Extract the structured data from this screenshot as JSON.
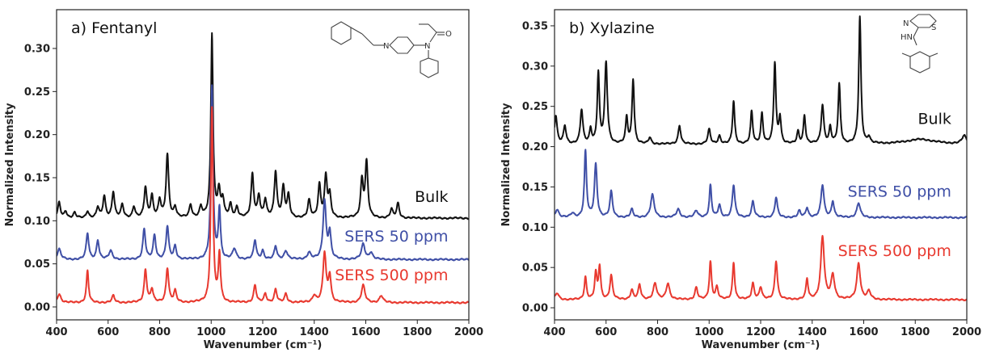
{
  "chart_data": [
    {
      "type": "line",
      "title": "a) Fentanyl",
      "xlabel": "Wavenumber (cm⁻¹)",
      "ylabel": "Normalized Intensity",
      "xlim": [
        400,
        2000
      ],
      "ylim": [
        -0.015,
        0.345
      ],
      "xticks": [
        400,
        600,
        800,
        1000,
        1200,
        1400,
        1600,
        1800,
        2000
      ],
      "yticks": [
        0.0,
        0.05,
        0.1,
        0.15,
        0.2,
        0.25,
        0.3
      ],
      "ytick_labels": [
        "0.00",
        "0.05",
        "0.10",
        "0.15",
        "0.20",
        "0.25",
        "0.30"
      ],
      "grid": false,
      "series": [
        {
          "name": "Bulk",
          "color": "#111111",
          "baseline": 0.103,
          "peaks": [
            [
              410,
              0.018,
              6
            ],
            [
              435,
              0.008,
              6
            ],
            [
              470,
              0.006,
              6
            ],
            [
              520,
              0.008,
              6
            ],
            [
              560,
              0.012,
              6
            ],
            [
              585,
              0.025,
              6
            ],
            [
              620,
              0.03,
              6
            ],
            [
              655,
              0.015,
              6
            ],
            [
              700,
              0.013,
              6
            ],
            [
              745,
              0.035,
              6
            ],
            [
              770,
              0.025,
              6
            ],
            [
              800,
              0.02,
              6
            ],
            [
              830,
              0.073,
              6
            ],
            [
              860,
              0.012,
              6
            ],
            [
              920,
              0.015,
              6
            ],
            [
              960,
              0.012,
              6
            ],
            [
              1003,
              0.213,
              5
            ],
            [
              1030,
              0.03,
              6
            ],
            [
              1045,
              0.02,
              6
            ],
            [
              1075,
              0.015,
              6
            ],
            [
              1100,
              0.012,
              6
            ],
            [
              1160,
              0.05,
              6
            ],
            [
              1185,
              0.025,
              6
            ],
            [
              1210,
              0.02,
              6
            ],
            [
              1250,
              0.053,
              6
            ],
            [
              1280,
              0.035,
              6
            ],
            [
              1300,
              0.025,
              6
            ],
            [
              1380,
              0.02,
              6
            ],
            [
              1420,
              0.038,
              6
            ],
            [
              1445,
              0.047,
              6
            ],
            [
              1460,
              0.025,
              6
            ],
            [
              1585,
              0.043,
              6
            ],
            [
              1603,
              0.064,
              6
            ],
            [
              1700,
              0.01,
              6
            ],
            [
              1725,
              0.017,
              6
            ]
          ]
        },
        {
          "name": "SERS 50 ppm",
          "color": "#3f4fa6",
          "baseline": 0.055,
          "peaks": [
            [
              410,
              0.012,
              8
            ],
            [
              520,
              0.03,
              6
            ],
            [
              560,
              0.022,
              6
            ],
            [
              610,
              0.01,
              8
            ],
            [
              740,
              0.035,
              6
            ],
            [
              780,
              0.028,
              6
            ],
            [
              830,
              0.038,
              6
            ],
            [
              860,
              0.015,
              6
            ],
            [
              1003,
              0.2,
              5
            ],
            [
              1032,
              0.058,
              5
            ],
            [
              1090,
              0.012,
              8
            ],
            [
              1170,
              0.022,
              6
            ],
            [
              1200,
              0.01,
              6
            ],
            [
              1250,
              0.015,
              6
            ],
            [
              1290,
              0.01,
              8
            ],
            [
              1380,
              0.008,
              8
            ],
            [
              1440,
              0.068,
              7
            ],
            [
              1460,
              0.03,
              6
            ],
            [
              1590,
              0.018,
              8
            ],
            [
              1620,
              0.008,
              8
            ]
          ]
        },
        {
          "name": "SERS 500 ppm",
          "color": "#e8392f",
          "baseline": 0.005,
          "peaks": [
            [
              410,
              0.01,
              8
            ],
            [
              520,
              0.037,
              5
            ],
            [
              620,
              0.008,
              6
            ],
            [
              745,
              0.038,
              6
            ],
            [
              770,
              0.015,
              6
            ],
            [
              830,
              0.04,
              6
            ],
            [
              860,
              0.013,
              6
            ],
            [
              1003,
              0.225,
              5
            ],
            [
              1032,
              0.055,
              5
            ],
            [
              1170,
              0.02,
              6
            ],
            [
              1210,
              0.01,
              6
            ],
            [
              1250,
              0.015,
              6
            ],
            [
              1290,
              0.01,
              6
            ],
            [
              1400,
              0.008,
              8
            ],
            [
              1440,
              0.057,
              7
            ],
            [
              1460,
              0.03,
              6
            ],
            [
              1590,
              0.02,
              8
            ],
            [
              1660,
              0.008,
              8
            ]
          ]
        }
      ],
      "labels": [
        {
          "series": 0,
          "text": "Bulk",
          "x": 1920,
          "y": 0.122
        },
        {
          "series": 1,
          "text": "SERS 50 ppm",
          "x": 1920,
          "y": 0.076
        },
        {
          "series": 2,
          "text": "SERS 500 ppm",
          "x": 1920,
          "y": 0.031
        }
      ]
    },
    {
      "type": "line",
      "title": "b) Xylazine",
      "xlabel": "Wavenumber (cm⁻¹)",
      "ylabel": "Normalized Intensity",
      "xlim": [
        400,
        2000
      ],
      "ylim": [
        -0.015,
        0.37
      ],
      "xticks": [
        400,
        600,
        800,
        1000,
        1200,
        1400,
        1600,
        1800,
        2000
      ],
      "yticks": [
        0.0,
        0.05,
        0.1,
        0.15,
        0.2,
        0.25,
        0.3,
        0.35
      ],
      "ytick_labels": [
        "0.00",
        "0.05",
        "0.10",
        "0.15",
        "0.20",
        "0.25",
        "0.30",
        "0.35"
      ],
      "grid": false,
      "series": [
        {
          "name": "Bulk",
          "color": "#111111",
          "baseline": 0.203,
          "peaks": [
            [
              405,
              0.035,
              6
            ],
            [
              440,
              0.022,
              6
            ],
            [
              505,
              0.042,
              6
            ],
            [
              540,
              0.018,
              5
            ],
            [
              570,
              0.087,
              5
            ],
            [
              600,
              0.1,
              6
            ],
            [
              680,
              0.032,
              5
            ],
            [
              705,
              0.08,
              5
            ],
            [
              770,
              0.008,
              6
            ],
            [
              885,
              0.023,
              6
            ],
            [
              1000,
              0.018,
              6
            ],
            [
              1040,
              0.01,
              6
            ],
            [
              1095,
              0.053,
              5
            ],
            [
              1165,
              0.04,
              5
            ],
            [
              1205,
              0.038,
              5
            ],
            [
              1255,
              0.1,
              5
            ],
            [
              1275,
              0.032,
              5
            ],
            [
              1345,
              0.015,
              5
            ],
            [
              1370,
              0.035,
              5
            ],
            [
              1440,
              0.048,
              6
            ],
            [
              1470,
              0.02,
              5
            ],
            [
              1505,
              0.074,
              5
            ],
            [
              1585,
              0.157,
              5
            ],
            [
              1620,
              0.008,
              6
            ],
            [
              1820,
              0.006,
              70
            ],
            [
              1990,
              0.01,
              10
            ]
          ]
        },
        {
          "name": "SERS 50 ppm",
          "color": "#3f4fa6",
          "baseline": 0.112,
          "peaks": [
            [
              410,
              0.01,
              8
            ],
            [
              470,
              0.005,
              8
            ],
            [
              520,
              0.082,
              5
            ],
            [
              560,
              0.066,
              6
            ],
            [
              620,
              0.032,
              6
            ],
            [
              700,
              0.01,
              6
            ],
            [
              780,
              0.028,
              8
            ],
            [
              880,
              0.01,
              8
            ],
            [
              950,
              0.008,
              8
            ],
            [
              1005,
              0.04,
              5
            ],
            [
              1040,
              0.015,
              6
            ],
            [
              1095,
              0.04,
              6
            ],
            [
              1170,
              0.02,
              6
            ],
            [
              1260,
              0.025,
              6
            ],
            [
              1350,
              0.008,
              6
            ],
            [
              1380,
              0.012,
              6
            ],
            [
              1440,
              0.04,
              7
            ],
            [
              1480,
              0.02,
              6
            ],
            [
              1580,
              0.018,
              8
            ]
          ]
        },
        {
          "name": "SERS 500 ppm",
          "color": "#e8392f",
          "baseline": 0.01,
          "peaks": [
            [
              410,
              0.008,
              8
            ],
            [
              520,
              0.028,
              5
            ],
            [
              560,
              0.032,
              5
            ],
            [
              575,
              0.04,
              5
            ],
            [
              620,
              0.03,
              6
            ],
            [
              700,
              0.012,
              6
            ],
            [
              730,
              0.018,
              6
            ],
            [
              790,
              0.02,
              8
            ],
            [
              840,
              0.02,
              8
            ],
            [
              950,
              0.015,
              6
            ],
            [
              1005,
              0.047,
              5
            ],
            [
              1030,
              0.015,
              6
            ],
            [
              1095,
              0.046,
              5
            ],
            [
              1170,
              0.02,
              6
            ],
            [
              1200,
              0.015,
              6
            ],
            [
              1260,
              0.048,
              6
            ],
            [
              1380,
              0.025,
              5
            ],
            [
              1440,
              0.078,
              8
            ],
            [
              1480,
              0.03,
              8
            ],
            [
              1580,
              0.045,
              8
            ],
            [
              1620,
              0.01,
              8
            ]
          ]
        }
      ],
      "labels": [
        {
          "series": 0,
          "text": "Bulk",
          "x": 1940,
          "y": 0.228
        },
        {
          "series": 1,
          "text": "SERS 50 ppm",
          "x": 1940,
          "y": 0.138
        },
        {
          "series": 2,
          "text": "SERS 500 ppm",
          "x": 1940,
          "y": 0.064
        }
      ]
    }
  ],
  "molecules": {
    "fentanyl_atoms": [
      "N",
      "N",
      "O"
    ],
    "xylazine_atoms": [
      "N",
      "HN",
      "S"
    ]
  }
}
